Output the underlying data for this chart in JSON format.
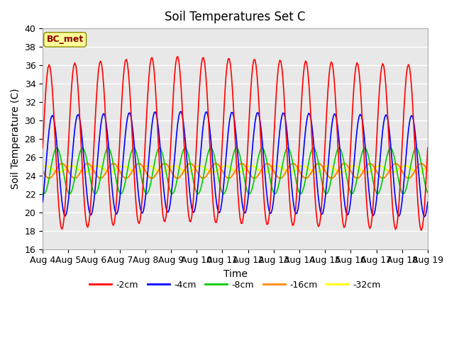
{
  "title": "Soil Temperatures Set C",
  "xlabel": "Time",
  "ylabel": "Soil Temperature (C)",
  "ylim": [
    16,
    40
  ],
  "yticks": [
    16,
    18,
    20,
    22,
    24,
    26,
    28,
    30,
    32,
    34,
    36,
    38,
    40
  ],
  "x_labels": [
    "Aug 4",
    "Aug 5",
    "Aug 6",
    "Aug 7",
    "Aug 8",
    "Aug 9",
    "Aug 10",
    "Aug 11",
    "Aug 12",
    "Aug 13",
    "Aug 14",
    "Aug 15",
    "Aug 16",
    "Aug 17",
    "Aug 18",
    "Aug 19"
  ],
  "n_days": 15,
  "points_per_day": 24,
  "depth_2cm": {
    "amplitude": 9.0,
    "mean": 27.0,
    "phase": 0.0,
    "color": "#FF0000",
    "label": "-2cm"
  },
  "depth_4cm": {
    "amplitude": 5.5,
    "mean": 25.0,
    "phase": 0.5,
    "color": "#0000FF",
    "label": "-4cm"
  },
  "depth_8cm": {
    "amplitude": 2.5,
    "mean": 24.5,
    "phase": 1.2,
    "color": "#00CC00",
    "label": "-8cm"
  },
  "depth_16cm": {
    "amplitude": 0.8,
    "mean": 24.5,
    "phase": 2.0,
    "color": "#FF8800",
    "label": "-16cm"
  },
  "depth_32cm": {
    "amplitude": 0.35,
    "mean": 24.7,
    "phase": 3.5,
    "color": "#FFFF00",
    "label": "-32cm"
  },
  "bg_color": "#E8E8E8",
  "label_box_color": "#FFFF99",
  "label_box_text": "BC_met",
  "label_box_text_color": "#880000",
  "grid_color": "#FFFFFF",
  "spine_color": "#AAAAAA"
}
